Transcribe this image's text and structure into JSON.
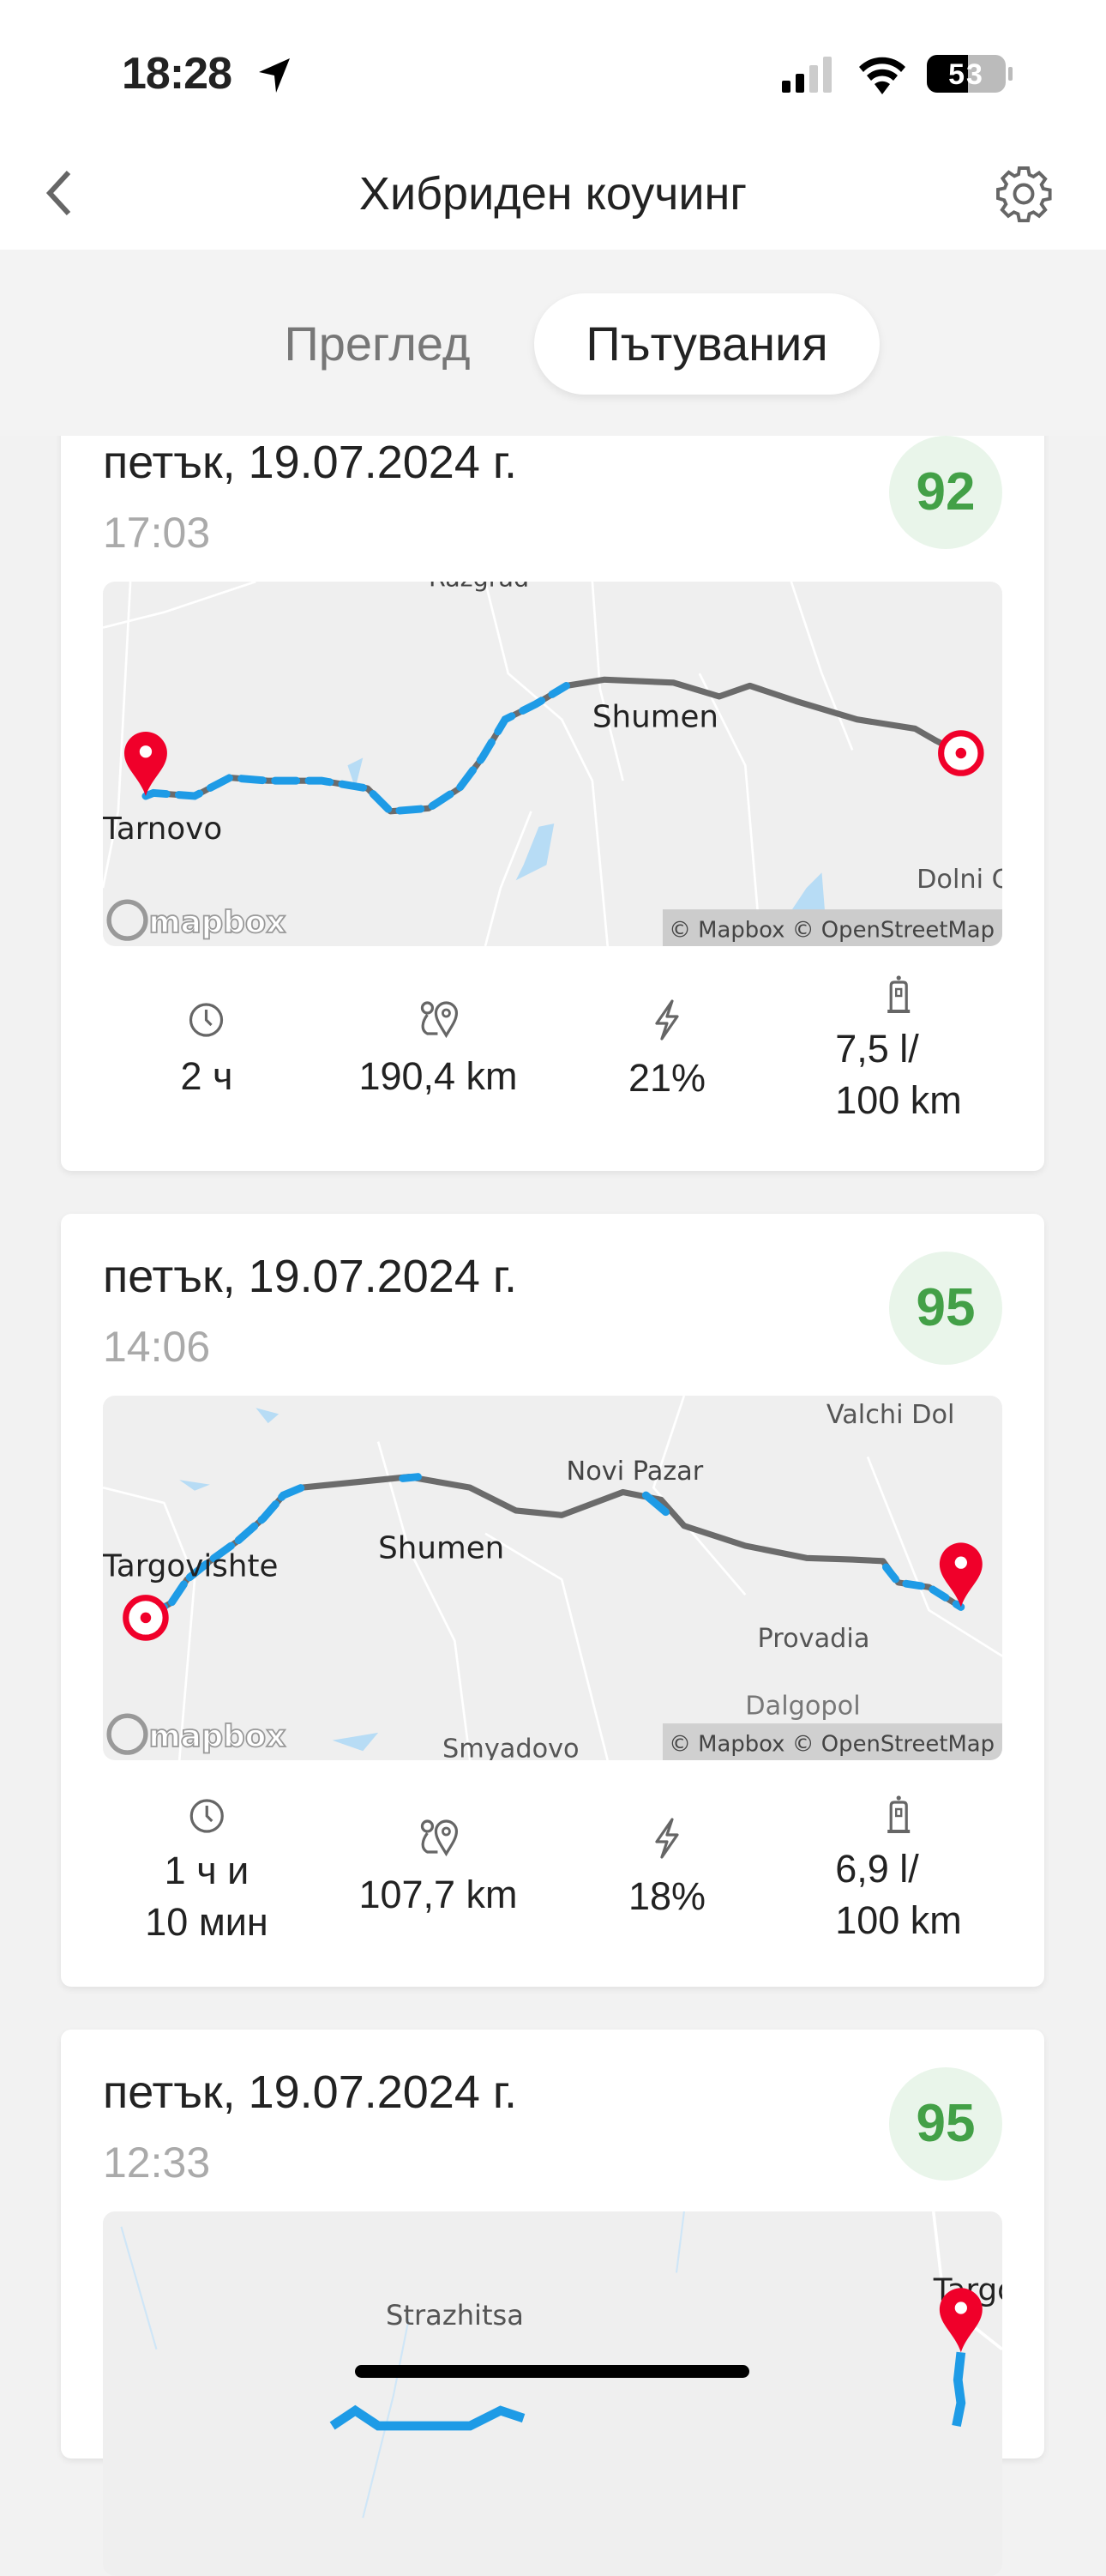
{
  "status_bar": {
    "time": "18:28",
    "battery": "53",
    "location_icon": "location-arrow-icon",
    "signal_icon": "cellular-signal-icon",
    "wifi_icon": "wifi-icon"
  },
  "header": {
    "title": "Хибриден коучинг",
    "back_icon": "chevron-left-icon",
    "settings_icon": "gear-icon"
  },
  "tabs": [
    {
      "label": "Преглед",
      "selected": false
    },
    {
      "label": "Пътувания",
      "selected": true
    }
  ],
  "colors": {
    "score_green": "#43a047",
    "route_blue": "#1e9be6",
    "route_gray": "#6b6b6b",
    "pin_red": "#f0002a"
  },
  "map_attribution": {
    "logo": "mapbox",
    "credit": "© Mapbox © OpenStreetMap"
  },
  "trips": [
    {
      "date": "петък, 19.07.2024 г.",
      "time": "17:03",
      "score": "92",
      "map_labels": [
        "Razgrad",
        "Shumen",
        "Tarnovo",
        "Dolni Chiflik"
      ],
      "stats": {
        "duration": "2 ч",
        "distance": "190,4 km",
        "electric": "21%",
        "fuel_line1": "7,5 l/",
        "fuel_line2": "100 km"
      }
    },
    {
      "date": "петък, 19.07.2024 г.",
      "time": "14:06",
      "score": "95",
      "map_labels": [
        "Valchi Dol",
        "Novi Pazar",
        "Targovishte",
        "Shumen",
        "Provadia",
        "Smyadovo",
        "Dalgopol"
      ],
      "stats": {
        "duration_line1": "1 ч и",
        "duration_line2": "10 мин",
        "distance": "107,7 km",
        "electric": "18%",
        "fuel_line1": "6,9 l/",
        "fuel_line2": "100 km"
      }
    },
    {
      "date": "петък, 19.07.2024 г.",
      "time": "12:33",
      "score": "95",
      "map_labels": [
        "Strazhitsa",
        "Targovishte"
      ]
    }
  ]
}
